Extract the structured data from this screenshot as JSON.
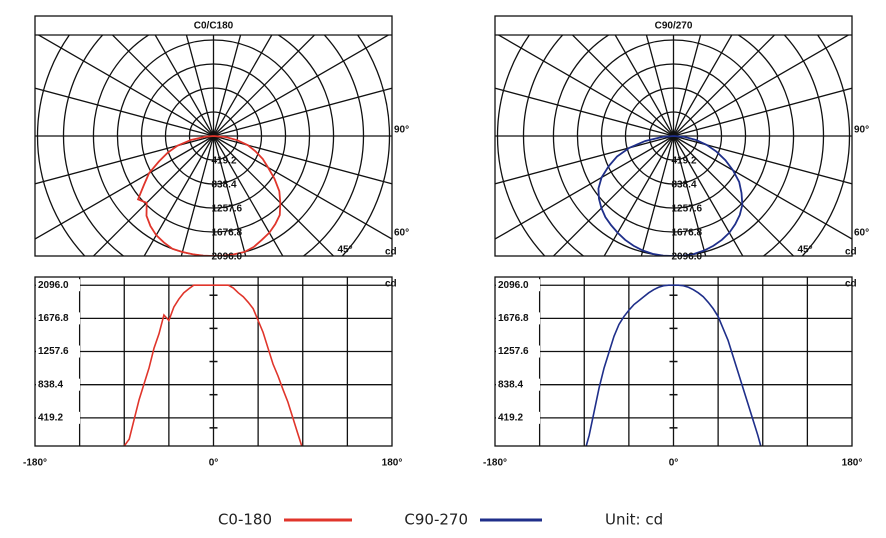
{
  "chart_data": [
    {
      "type": "photometric",
      "title": "C0/C180",
      "unit": "cd",
      "x": [
        -90,
        -85,
        -80,
        -75,
        -70,
        -65,
        -60,
        -55,
        -50,
        -45,
        -40,
        -35,
        -30,
        -25,
        -20,
        -15,
        -10,
        -5,
        0,
        5,
        10,
        15,
        20,
        25,
        30,
        35,
        40,
        45,
        50,
        55,
        60,
        65,
        70,
        75,
        80,
        85,
        89
      ],
      "series": [
        {
          "name": "C0-180",
          "color": "#e0352b",
          "values": [
            0,
            150,
            400,
            650,
            850,
            1050,
            1300,
            1480,
            1720,
            1650,
            1820,
            1920,
            2000,
            2050,
            2096,
            2096,
            2096,
            2096,
            2096,
            2096,
            2096,
            2096,
            2060,
            2000,
            1950,
            1880,
            1800,
            1650,
            1500,
            1300,
            1100,
            950,
            780,
            620,
            420,
            220,
            0
          ]
        }
      ],
      "xlim": [
        -180,
        180
      ],
      "xticks": [
        {
          "value": -180,
          "label": "-180°"
        },
        {
          "value": 0,
          "label": "0°"
        },
        {
          "value": 180,
          "label": "180°"
        }
      ],
      "ylim": [
        0,
        2200
      ],
      "yticks": [
        419.2,
        838.4,
        1257.6,
        1676.8,
        {
          "value": 2096,
          "label": "2096.0"
        }
      ],
      "angle_ticks": [
        {
          "value": 90,
          "label": "90°"
        },
        {
          "value": 60,
          "label": "60°"
        },
        {
          "value": 45,
          "label": "45°"
        }
      ],
      "grid": true
    },
    {
      "type": "photometric",
      "title": "C90/270",
      "unit": "cd",
      "x": [
        -88,
        -85,
        -80,
        -75,
        -70,
        -65,
        -60,
        -55,
        -50,
        -45,
        -40,
        -35,
        -30,
        -25,
        -20,
        -15,
        -10,
        -5,
        0,
        5,
        10,
        15,
        20,
        25,
        30,
        35,
        40,
        45,
        50,
        55,
        60,
        65,
        70,
        75,
        80,
        85,
        88
      ],
      "series": [
        {
          "name": "C90-270",
          "color": "#1f2f8a",
          "values": [
            0,
            200,
            500,
            800,
            1050,
            1250,
            1450,
            1600,
            1700,
            1780,
            1850,
            1900,
            1950,
            2000,
            2040,
            2070,
            2090,
            2096,
            2096,
            2096,
            2090,
            2070,
            2040,
            2000,
            1950,
            1880,
            1800,
            1700,
            1550,
            1400,
            1200,
            1000,
            800,
            600,
            400,
            200,
            0
          ]
        }
      ],
      "xlim": [
        -180,
        180
      ],
      "xticks": [
        {
          "value": -180,
          "label": "-180°"
        },
        {
          "value": 0,
          "label": "0°"
        },
        {
          "value": 180,
          "label": "180°"
        }
      ],
      "ylim": [
        0,
        2200
      ],
      "yticks": [
        419.2,
        838.4,
        1257.6,
        1676.8,
        {
          "value": 2096,
          "label": "2096.0"
        }
      ],
      "angle_ticks": [
        {
          "value": 90,
          "label": "90°"
        },
        {
          "value": 60,
          "label": "60°"
        },
        {
          "value": 45,
          "label": "45°"
        }
      ],
      "grid": true
    }
  ],
  "legend_note": "Unit: cd"
}
